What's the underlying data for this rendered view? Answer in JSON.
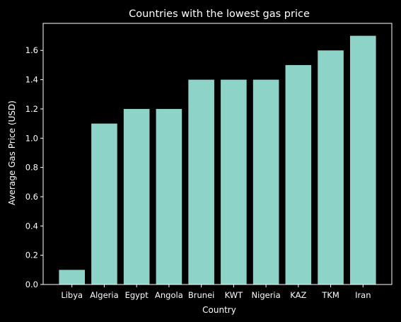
{
  "chart_data": {
    "type": "bar",
    "title": "Countries with the lowest gas price",
    "xlabel": "Country",
    "ylabel": "Average Gas Price (USD)",
    "categories": [
      "Libya",
      "Algeria",
      "Egypt",
      "Angola",
      "Brunei",
      "KWT",
      "Nigeria",
      "KAZ",
      "TKM",
      "Iran"
    ],
    "values": [
      0.1,
      1.1,
      1.2,
      1.2,
      1.4,
      1.4,
      1.4,
      1.5,
      1.6,
      1.7
    ],
    "ylim": [
      0,
      1.785
    ],
    "yticks": [
      0.0,
      0.2,
      0.4,
      0.6,
      0.8,
      1.0,
      1.2,
      1.4,
      1.6
    ],
    "grid": false,
    "legend": "none",
    "colors": {
      "background": "#000000",
      "bar": "#8dd3c7",
      "axes": "#ffffff",
      "text": "#ffffff"
    }
  }
}
